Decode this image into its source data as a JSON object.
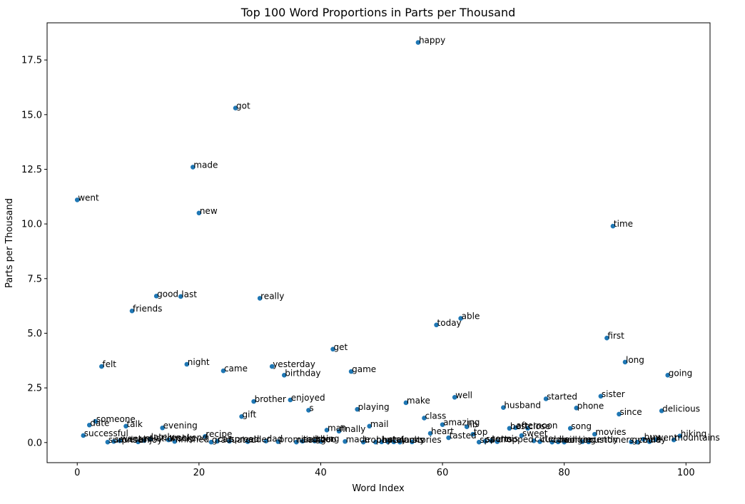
{
  "chart_data": {
    "type": "scatter",
    "title": "Top 100 Word Proportions in Parts per Thousand",
    "xlabel": "Word Index",
    "ylabel": "Parts per Thousand",
    "xlim": [
      -4.95,
      103.95
    ],
    "ylim": [
      -0.92,
      19.2
    ],
    "xticks": [
      0,
      20,
      40,
      60,
      80,
      100
    ],
    "yticks": [
      0.0,
      2.5,
      5.0,
      7.5,
      10.0,
      12.5,
      15.0,
      17.5
    ],
    "ytick_labels": [
      "0.0",
      "2.5",
      "5.0",
      "7.5",
      "10.0",
      "12.5",
      "15.0",
      "17.5"
    ],
    "grid": false,
    "marker_color": "#1f77b4",
    "points": [
      {
        "x": 0,
        "y": 11.1,
        "label": "went"
      },
      {
        "x": 1,
        "y": 0.32,
        "label": "successful"
      },
      {
        "x": 2,
        "y": 0.8,
        "label": "date"
      },
      {
        "x": 3,
        "y": 0.97,
        "label": "someone"
      },
      {
        "x": 4,
        "y": 3.48,
        "label": "felt"
      },
      {
        "x": 5,
        "y": 0.02,
        "label": "surprise"
      },
      {
        "x": 6,
        "y": 0.05,
        "label": "several"
      },
      {
        "x": 7,
        "y": 0.08,
        "label": "wanted"
      },
      {
        "x": 8,
        "y": 0.75,
        "label": "talk"
      },
      {
        "x": 9,
        "y": 6.02,
        "label": "friends"
      },
      {
        "x": 10,
        "y": 0.03,
        "label": "enjoy"
      },
      {
        "x": 11,
        "y": 0.09,
        "label": "relationship"
      },
      {
        "x": 12,
        "y": 0.15,
        "label": "lately"
      },
      {
        "x": 13,
        "y": 6.7,
        "label": "good"
      },
      {
        "x": 14,
        "y": 0.67,
        "label": "evening"
      },
      {
        "x": 15,
        "y": 0.12,
        "label": "weekend"
      },
      {
        "x": 16,
        "y": 0.05,
        "label": "finished"
      },
      {
        "x": 17,
        "y": 6.68,
        "label": "last"
      },
      {
        "x": 18,
        "y": 3.58,
        "label": "night"
      },
      {
        "x": 19,
        "y": 12.6,
        "label": "made"
      },
      {
        "x": 20,
        "y": 10.5,
        "label": "new"
      },
      {
        "x": 21,
        "y": 0.28,
        "label": "recipe"
      },
      {
        "x": 22,
        "y": 0.02,
        "label": "graduated"
      },
      {
        "x": 23,
        "y": 0.06,
        "label": "car"
      },
      {
        "x": 24,
        "y": 3.28,
        "label": "came"
      },
      {
        "x": 25,
        "y": 0.06,
        "label": "spread"
      },
      {
        "x": 26,
        "y": 15.3,
        "label": "got"
      },
      {
        "x": 27,
        "y": 1.19,
        "label": "gift"
      },
      {
        "x": 28,
        "y": 0.04,
        "label": "elder"
      },
      {
        "x": 29,
        "y": 1.88,
        "label": "brother"
      },
      {
        "x": 30,
        "y": 6.6,
        "label": "really"
      },
      {
        "x": 31,
        "y": 0.07,
        "label": "dad"
      },
      {
        "x": 32,
        "y": 3.48,
        "label": "yesterday"
      },
      {
        "x": 33,
        "y": 0.04,
        "label": "promised"
      },
      {
        "x": 34,
        "y": 3.08,
        "label": "birthday"
      },
      {
        "x": 35,
        "y": 1.95,
        "label": "enjoyed"
      },
      {
        "x": 36,
        "y": 0.02,
        "label": "raising"
      },
      {
        "x": 37,
        "y": 0.06,
        "label": "toddler"
      },
      {
        "x": 38,
        "y": 1.48,
        "label": "s"
      },
      {
        "x": 39,
        "y": 0.07,
        "label": "going"
      },
      {
        "x": 40,
        "y": 0.05,
        "label": "zoo"
      },
      {
        "x": 41,
        "y": 0.57,
        "label": "man"
      },
      {
        "x": 42,
        "y": 4.27,
        "label": "get"
      },
      {
        "x": 43,
        "y": 0.52,
        "label": "finally"
      },
      {
        "x": 44,
        "y": 0.05,
        "label": "made"
      },
      {
        "x": 45,
        "y": 3.25,
        "label": "game"
      },
      {
        "x": 46,
        "y": 1.52,
        "label": "playing"
      },
      {
        "x": 47,
        "y": 0.02,
        "label": "trophy"
      },
      {
        "x": 48,
        "y": 0.75,
        "label": "mail"
      },
      {
        "x": 49,
        "y": 0.02,
        "label": "beat"
      },
      {
        "x": 50,
        "y": 0.03,
        "label": "hotel"
      },
      {
        "x": 51,
        "y": 0.04,
        "label": "stay"
      },
      {
        "x": 52,
        "y": 0.03,
        "label": "snacks"
      },
      {
        "x": 53,
        "y": 0.02,
        "label": "funny"
      },
      {
        "x": 54,
        "y": 1.82,
        "label": "make"
      },
      {
        "x": 55,
        "y": 0.03,
        "label": "stories"
      },
      {
        "x": 56,
        "y": 18.3,
        "label": "happy"
      },
      {
        "x": 57,
        "y": 1.12,
        "label": "class"
      },
      {
        "x": 58,
        "y": 0.42,
        "label": "heart"
      },
      {
        "x": 59,
        "y": 5.38,
        "label": "today"
      },
      {
        "x": 60,
        "y": 0.82,
        "label": "amazing"
      },
      {
        "x": 61,
        "y": 0.22,
        "label": "tasted"
      },
      {
        "x": 62,
        "y": 2.07,
        "label": "well"
      },
      {
        "x": 63,
        "y": 5.68,
        "label": "able"
      },
      {
        "x": 64,
        "y": 0.72,
        "label": "lib"
      },
      {
        "x": 65,
        "y": 0.38,
        "label": "top"
      },
      {
        "x": 66,
        "y": 0.02,
        "label": "spa"
      },
      {
        "x": 67,
        "y": 0.06,
        "label": "sports"
      },
      {
        "x": 68,
        "y": 0.08,
        "label": "tennis"
      },
      {
        "x": 69,
        "y": 0.04,
        "label": "dropped"
      },
      {
        "x": 70,
        "y": 1.6,
        "label": "husband"
      },
      {
        "x": 71,
        "y": 0.65,
        "label": "best"
      },
      {
        "x": 72,
        "y": 0.68,
        "label": "afternoon"
      },
      {
        "x": 73,
        "y": 0.32,
        "label": "sweet"
      },
      {
        "x": 74,
        "y": 0.65,
        "label": "close"
      },
      {
        "x": 75,
        "y": 0.08,
        "label": "cute"
      },
      {
        "x": 76,
        "y": 0.04,
        "label": "cuddle"
      },
      {
        "x": 77,
        "y": 2.0,
        "label": "started"
      },
      {
        "x": 78,
        "y": 0.02,
        "label": "coworker"
      },
      {
        "x": 79,
        "y": 0.03,
        "label": "mall"
      },
      {
        "x": 80,
        "y": 0.02,
        "label": "singing"
      },
      {
        "x": 81,
        "y": 0.65,
        "label": "song"
      },
      {
        "x": 82,
        "y": 1.58,
        "label": "phone"
      },
      {
        "x": 83,
        "y": 0.04,
        "label": "recently"
      },
      {
        "x": 84,
        "y": 0.03,
        "label": "customers"
      },
      {
        "x": 85,
        "y": 0.38,
        "label": "movies"
      },
      {
        "x": 86,
        "y": 2.12,
        "label": "sister"
      },
      {
        "x": 87,
        "y": 4.78,
        "label": "first"
      },
      {
        "x": 88,
        "y": 9.9,
        "label": "time"
      },
      {
        "x": 89,
        "y": 1.3,
        "label": "since"
      },
      {
        "x": 90,
        "y": 3.68,
        "label": "long"
      },
      {
        "x": 91,
        "y": 0.03,
        "label": "gym"
      },
      {
        "x": 92,
        "y": 0.02,
        "label": "could"
      },
      {
        "x": 93,
        "y": 0.15,
        "label": "buy"
      },
      {
        "x": 94,
        "y": 0.04,
        "label": "bay"
      },
      {
        "x": 95,
        "y": 0.13,
        "label": "went"
      },
      {
        "x": 96,
        "y": 1.45,
        "label": "delicious"
      },
      {
        "x": 97,
        "y": 3.08,
        "label": "going"
      },
      {
        "x": 98,
        "y": 0.12,
        "label": "mountains"
      },
      {
        "x": 99,
        "y": 0.3,
        "label": "hiking"
      }
    ]
  }
}
